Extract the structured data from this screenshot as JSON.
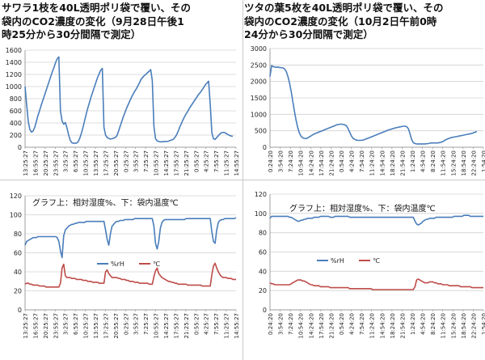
{
  "chart_data": [
    {
      "id": "tl",
      "type": "line",
      "title": "サワラ1枝を40L透明ポリ袋で覆い、その\n袋内のCO2濃度の変化（9月28日午後1\n時25分から30分間隔で測定）",
      "xlabel": "",
      "ylabel": "",
      "ylim": [
        0,
        1600
      ],
      "yticks": [
        0,
        200,
        400,
        600,
        800,
        1000,
        1200,
        1400,
        1600
      ],
      "grid": true,
      "legend": "none",
      "x_tick_labels": [
        "13:25:27",
        "16:55:27",
        "20:25:27",
        "23:55:27",
        "3:25:27",
        "6:55:27",
        "10:25:27",
        "13:55:27",
        "17:25:27",
        "20:55:27",
        "0:25:27",
        "3:55:27",
        "7:25:27",
        "10:55:27",
        "14:25:27",
        "17:55:27",
        "21:25:27",
        "0:55:27",
        "4:25:27",
        "7:55:27",
        "11:25:27",
        "14:55:27"
      ],
      "n_points": 132,
      "series": [
        {
          "color": "#4a7ebb",
          "values": [
            1000,
            700,
            420,
            290,
            250,
            270,
            330,
            420,
            520,
            600,
            690,
            770,
            850,
            930,
            1010,
            1090,
            1170,
            1250,
            1320,
            1400,
            1460,
            1490,
            600,
            430,
            380,
            410,
            320,
            210,
            120,
            75,
            65,
            65,
            70,
            90,
            150,
            230,
            330,
            440,
            550,
            650,
            740,
            830,
            910,
            990,
            1070,
            1150,
            1210,
            1270,
            1300,
            330,
            200,
            160,
            145,
            135,
            140,
            150,
            160,
            190,
            260,
            340,
            420,
            500,
            570,
            640,
            700,
            760,
            820,
            870,
            920,
            960,
            1010,
            1060,
            1120,
            1150,
            1180,
            1200,
            1230,
            1250,
            1280,
            1100,
            350,
            140,
            105,
            95,
            90,
            90,
            95,
            95,
            95,
            100,
            110,
            120,
            130,
            160,
            200,
            260,
            330,
            390,
            450,
            500,
            550,
            590,
            640,
            680,
            720,
            760,
            800,
            840,
            880,
            910,
            950,
            990,
            1030,
            1060,
            1090,
            700,
            240,
            140,
            130,
            160,
            190,
            220,
            240,
            245,
            240,
            225,
            210,
            195,
            185,
            180
          ]
        }
      ]
    },
    {
      "id": "tr",
      "type": "line",
      "title": "ツタの葉5枚を40L透明ポリ袋で覆い、その\n袋内のCO2濃度の変化（10月2日午前0時\n24分から30分間隔で測定）",
      "xlabel": "",
      "ylabel": "",
      "ylim": [
        0,
        3000
      ],
      "yticks": [
        0,
        500,
        1000,
        1500,
        2000,
        2500,
        3000
      ],
      "grid": true,
      "legend": "none",
      "x_tick_labels": [
        "0:24:20",
        "3:54:20",
        "7:24:20",
        "10:54:20",
        "14:24:20",
        "17:54:20",
        "21:24:20",
        "0:54:20",
        "4:24:20",
        "7:54:20",
        "11:24:20",
        "14:54:20",
        "18:24:20",
        "21:54:20",
        "1:24:20",
        "4:54:20",
        "8:24:20",
        "11:54:20",
        "15:24:20",
        "18:54:20",
        "22:24:20",
        "1:54:20"
      ],
      "n_points": 132,
      "series": [
        {
          "color": "#4a7ebb",
          "values": [
            2150,
            2480,
            2450,
            2440,
            2430,
            2440,
            2420,
            2420,
            2410,
            2380,
            2300,
            2150,
            1950,
            1700,
            1400,
            1100,
            830,
            600,
            440,
            340,
            290,
            270,
            260,
            280,
            310,
            340,
            370,
            400,
            420,
            440,
            460,
            480,
            500,
            520,
            540,
            560,
            580,
            600,
            620,
            640,
            660,
            680,
            690,
            700,
            700,
            690,
            680,
            650,
            560,
            450,
            340,
            270,
            240,
            220,
            210,
            210,
            210,
            220,
            230,
            250,
            270,
            290,
            310,
            330,
            350,
            370,
            390,
            410,
            430,
            450,
            470,
            490,
            510,
            530,
            540,
            560,
            570,
            590,
            600,
            610,
            620,
            630,
            640,
            640,
            620,
            560,
            400,
            230,
            140,
            110,
            100,
            100,
            100,
            100,
            100,
            100,
            105,
            110,
            120,
            130,
            130,
            130,
            130,
            130,
            140,
            150,
            170,
            200,
            230,
            250,
            270,
            290,
            300,
            310,
            320,
            330,
            340,
            350,
            360,
            370,
            380,
            390,
            400,
            410,
            420,
            440,
            460,
            480
          ]
        }
      ]
    },
    {
      "id": "bl",
      "type": "line",
      "note": "グラフ上：相対湿度%、下：袋内温度℃",
      "xlabel": "",
      "ylabel": "",
      "ylim": [
        0,
        120
      ],
      "yticks": [
        0,
        20,
        40,
        60,
        80,
        100,
        120
      ],
      "grid": true,
      "legend": "right",
      "x_tick_labels": [
        "13:25:27",
        "16:55:27",
        "20:25:27",
        "23:55:27",
        "3:25:27",
        "6:55:27",
        "10:25:27",
        "13:55:27",
        "17:25:27",
        "20:55:27",
        "0:25:27",
        "3:55:27",
        "7:25:27",
        "10:55:27",
        "14:25:27",
        "17:55:27",
        "21:25:27",
        "0:55:27",
        "4:25:27",
        "7:55:27",
        "11:25:27",
        "14:55:27"
      ],
      "n_points": 132,
      "series": [
        {
          "name": "%rH",
          "color": "#4a7ebb",
          "values": [
            68,
            72,
            73,
            74,
            75,
            76,
            76,
            76,
            77,
            77,
            77,
            77,
            77,
            77,
            77,
            77,
            77,
            77,
            77,
            77,
            76,
            72,
            62,
            55,
            78,
            84,
            86,
            88,
            89,
            90,
            90,
            91,
            91,
            92,
            92,
            92,
            92,
            92,
            93,
            93,
            93,
            93,
            93,
            93,
            93,
            93,
            93,
            93,
            93,
            93,
            84,
            74,
            68,
            80,
            88,
            90,
            92,
            93,
            93,
            94,
            94,
            94,
            95,
            95,
            95,
            95,
            95,
            95,
            96,
            96,
            96,
            96,
            96,
            96,
            96,
            96,
            96,
            96,
            96,
            96,
            88,
            70,
            64,
            72,
            86,
            92,
            94,
            95,
            95,
            95,
            95,
            95,
            95,
            95,
            95,
            95,
            95,
            95,
            95,
            95,
            96,
            96,
            96,
            96,
            96,
            96,
            96,
            96,
            96,
            96,
            96,
            96,
            96,
            96,
            96,
            96,
            82,
            72,
            70,
            84,
            92,
            94,
            95,
            95,
            96,
            96,
            96,
            96,
            96,
            96,
            96,
            97
          ]
        },
        {
          "name": "℃",
          "color": "#be4b48",
          "values": [
            27,
            28,
            28,
            27,
            27,
            26,
            26,
            26,
            26,
            25,
            25,
            25,
            25,
            24,
            24,
            24,
            24,
            24,
            24,
            24,
            24,
            24,
            28,
            44,
            48,
            36,
            34,
            34,
            34,
            33,
            33,
            33,
            32,
            32,
            32,
            32,
            31,
            31,
            31,
            30,
            30,
            30,
            29,
            29,
            29,
            29,
            28,
            28,
            28,
            28,
            40,
            42,
            38,
            36,
            34,
            34,
            34,
            34,
            33,
            33,
            32,
            32,
            32,
            31,
            31,
            30,
            30,
            30,
            29,
            29,
            29,
            28,
            28,
            28,
            28,
            28,
            28,
            27,
            27,
            27,
            35,
            41,
            44,
            38,
            36,
            34,
            33,
            32,
            31,
            30,
            30,
            29,
            29,
            28,
            28,
            27,
            27,
            27,
            27,
            27,
            27,
            26,
            26,
            26,
            26,
            26,
            26,
            26,
            26,
            26,
            25,
            25,
            25,
            25,
            25,
            25,
            37,
            46,
            49,
            44,
            40,
            37,
            35,
            34,
            34,
            34,
            33,
            33,
            33,
            32,
            32,
            32
          ]
        }
      ]
    },
    {
      "id": "br",
      "type": "line",
      "note": "グラフ上：相対湿度%、下：袋内温度℃",
      "xlabel": "",
      "ylabel": "",
      "ylim": [
        0,
        120
      ],
      "yticks": [
        0,
        20,
        40,
        60,
        80,
        100,
        120
      ],
      "grid": true,
      "legend": "right",
      "x_tick_labels": [
        "0:24:20",
        "3:54:20",
        "7:24:20",
        "10:54:20",
        "14:24:20",
        "17:54:20",
        "21:24:20",
        "0:54:20",
        "4:24:20",
        "7:54:20",
        "11:24:20",
        "14:54:20",
        "18:24:20",
        "21:54:20",
        "1:24:20",
        "4:54:20",
        "8:24:20",
        "11:54:20",
        "15:24:20",
        "18:54:20",
        "22:24:20",
        "1:54:20"
      ],
      "n_points": 132,
      "series": [
        {
          "name": "%rH",
          "color": "#4a7ebb",
          "values": [
            95,
            97,
            97,
            97,
            97,
            97,
            97,
            97,
            97,
            97,
            97,
            97,
            96,
            96,
            95,
            94,
            93,
            92,
            92,
            93,
            93,
            94,
            94,
            95,
            95,
            95,
            95,
            96,
            96,
            96,
            96,
            97,
            97,
            97,
            97,
            97,
            97,
            96,
            96,
            96,
            97,
            97,
            97,
            97,
            97,
            97,
            97,
            97,
            97,
            96,
            96,
            96,
            96,
            96,
            96,
            96,
            96,
            96,
            96,
            96,
            96,
            96,
            96,
            96,
            96,
            96,
            96,
            96,
            96,
            96,
            96,
            96,
            96,
            96,
            96,
            96,
            96,
            96,
            96,
            96,
            96,
            96,
            96,
            96,
            96,
            96,
            96,
            96,
            96,
            92,
            89,
            88,
            89,
            90,
            92,
            93,
            94,
            94,
            95,
            95,
            95,
            95,
            96,
            96,
            96,
            96,
            96,
            96,
            96,
            96,
            96,
            96,
            96,
            97,
            97,
            97,
            97,
            97,
            97,
            98,
            98,
            98,
            98,
            97,
            97,
            97,
            97,
            97,
            97,
            97,
            97,
            97
          ]
        },
        {
          "name": "℃",
          "color": "#be4b48",
          "values": [
            28,
            27,
            27,
            26,
            26,
            26,
            26,
            26,
            26,
            26,
            26,
            26,
            26,
            27,
            28,
            29,
            30,
            31,
            31,
            31,
            30,
            30,
            29,
            28,
            27,
            26,
            26,
            25,
            25,
            25,
            25,
            24,
            24,
            24,
            24,
            24,
            24,
            23,
            23,
            23,
            23,
            23,
            23,
            23,
            23,
            23,
            23,
            23,
            23,
            22,
            22,
            22,
            22,
            22,
            22,
            22,
            22,
            22,
            22,
            22,
            22,
            22,
            22,
            21,
            21,
            21,
            21,
            21,
            21,
            21,
            21,
            21,
            21,
            21,
            21,
            21,
            21,
            21,
            21,
            21,
            21,
            21,
            21,
            21,
            21,
            21,
            21,
            21,
            21,
            24,
            31,
            32,
            31,
            30,
            29,
            28,
            28,
            28,
            29,
            29,
            29,
            28,
            28,
            27,
            27,
            27,
            26,
            26,
            26,
            26,
            25,
            25,
            25,
            25,
            25,
            25,
            25,
            24,
            24,
            24,
            24,
            24,
            24,
            24,
            23,
            23,
            23,
            23,
            23,
            23,
            23,
            23
          ]
        }
      ]
    }
  ]
}
